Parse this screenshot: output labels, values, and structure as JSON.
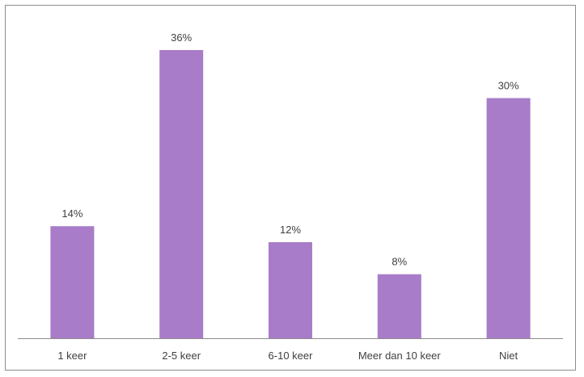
{
  "chart_data": {
    "type": "bar",
    "categories": [
      "1 keer",
      "2-5 keer",
      "6-10 keer",
      "Meer dan 10 keer",
      "Niet"
    ],
    "values": [
      14,
      36,
      12,
      8,
      30
    ],
    "value_labels": [
      "14%",
      "36%",
      "12%",
      "8%",
      "30%"
    ],
    "title": "",
    "xlabel": "",
    "ylabel": "",
    "ylim": [
      0,
      36
    ],
    "grid": false,
    "legend": "none",
    "bar_color": "#a87cc8",
    "axis_color": "#8c8c8c",
    "text_color": "#404040"
  }
}
